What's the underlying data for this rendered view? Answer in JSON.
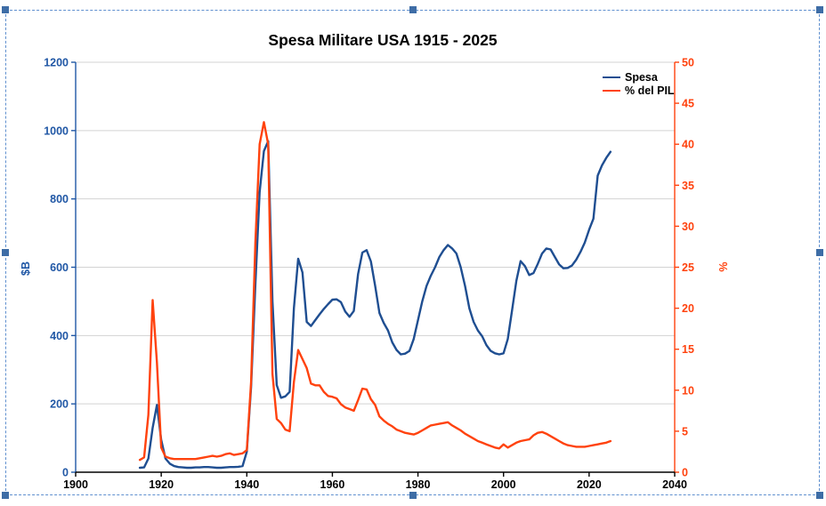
{
  "selection": {
    "border_color": "#6090cf",
    "handle_color": "#3e6da6"
  },
  "chart_data": {
    "type": "line",
    "title": "Spesa Militare USA 1915 - 2025",
    "grid": "horizontal",
    "grid_color": "#d3d3d3",
    "legend_position": "top-right",
    "years": [
      1915,
      1916,
      1917,
      1918,
      1919,
      1920,
      1921,
      1922,
      1923,
      1924,
      1925,
      1926,
      1927,
      1928,
      1929,
      1930,
      1931,
      1932,
      1933,
      1934,
      1935,
      1936,
      1937,
      1938,
      1939,
      1940,
      1941,
      1942,
      1943,
      1944,
      1945,
      1946,
      1947,
      1948,
      1949,
      1950,
      1951,
      1952,
      1953,
      1954,
      1955,
      1956,
      1957,
      1958,
      1959,
      1960,
      1961,
      1962,
      1963,
      1964,
      1965,
      1966,
      1967,
      1968,
      1969,
      1970,
      1971,
      1972,
      1973,
      1974,
      1975,
      1976,
      1977,
      1978,
      1979,
      1980,
      1981,
      1982,
      1983,
      1984,
      1985,
      1986,
      1987,
      1988,
      1989,
      1990,
      1991,
      1992,
      1993,
      1994,
      1995,
      1996,
      1997,
      1998,
      1999,
      2000,
      2001,
      2002,
      2003,
      2004,
      2005,
      2006,
      2007,
      2008,
      2009,
      2010,
      2011,
      2012,
      2013,
      2014,
      2015,
      2016,
      2017,
      2018,
      2019,
      2020,
      2021,
      2022,
      2023,
      2024,
      2025
    ],
    "series": [
      {
        "name": "Spesa",
        "axis": "left",
        "color": "#1f4e91",
        "values": [
          13,
          14,
          40,
          130,
          197,
          95,
          40,
          25,
          18,
          15,
          14,
          13,
          13,
          14,
          14,
          15,
          15,
          14,
          13,
          13,
          14,
          15,
          15,
          16,
          18,
          60,
          250,
          550,
          820,
          940,
          969,
          500,
          255,
          218,
          222,
          235,
          480,
          625,
          585,
          440,
          428,
          445,
          462,
          478,
          492,
          505,
          506,
          498,
          470,
          455,
          472,
          580,
          643,
          650,
          617,
          545,
          466,
          437,
          415,
          380,
          358,
          345,
          347,
          355,
          390,
          445,
          500,
          545,
          575,
          600,
          630,
          650,
          665,
          655,
          640,
          600,
          545,
          480,
          440,
          415,
          398,
          372,
          355,
          348,
          345,
          348,
          390,
          474,
          560,
          618,
          603,
          577,
          583,
          610,
          640,
          655,
          652,
          630,
          608,
          597,
          598,
          605,
          622,
          645,
          672,
          710,
          742,
          868,
          898,
          920,
          938
        ]
      },
      {
        "name": "% del PIL",
        "axis": "right",
        "color": "#ff420e",
        "values": [
          1.5,
          1.8,
          7,
          21,
          13.4,
          3,
          1.9,
          1.7,
          1.6,
          1.6,
          1.6,
          1.6,
          1.6,
          1.6,
          1.7,
          1.8,
          1.9,
          2,
          1.9,
          2,
          2.2,
          2.3,
          2.1,
          2.2,
          2.3,
          2.7,
          11,
          28,
          40,
          42.7,
          40,
          12,
          6.5,
          6,
          5.2,
          5,
          11,
          14.9,
          13.8,
          12.7,
          10.8,
          10.6,
          10.6,
          9.8,
          9.3,
          9.2,
          9,
          8.3,
          7.9,
          7.7,
          7.5,
          8.8,
          10.2,
          10.1,
          8.9,
          8.2,
          6.8,
          6.3,
          5.9,
          5.6,
          5.2,
          5,
          4.8,
          4.7,
          4.6,
          4.8,
          5.1,
          5.4,
          5.7,
          5.8,
          5.9,
          6,
          6.1,
          5.7,
          5.4,
          5.1,
          4.7,
          4.4,
          4.1,
          3.8,
          3.6,
          3.4,
          3.2,
          3,
          2.9,
          3.4,
          3,
          3.3,
          3.6,
          3.8,
          3.9,
          4,
          4.5,
          4.8,
          4.9,
          4.7,
          4.4,
          4.1,
          3.8,
          3.5,
          3.3,
          3.2,
          3.1,
          3.1,
          3.1,
          3.2,
          3.3,
          3.4,
          3.5,
          3.6,
          3.8
        ]
      }
    ],
    "x_axis": {
      "label": "",
      "range": [
        1900,
        2040
      ],
      "ticks": [
        1900,
        1920,
        1940,
        1960,
        1980,
        2000,
        2020,
        2040
      ],
      "color": "#000000"
    },
    "y_left": {
      "label": "$B",
      "range": [
        0,
        1200
      ],
      "ticks": [
        0,
        200,
        400,
        600,
        800,
        1000,
        1200
      ],
      "color": "#2057a5"
    },
    "y_right": {
      "label": "%",
      "range": [
        0,
        50
      ],
      "ticks": [
        0,
        5,
        10,
        15,
        20,
        25,
        30,
        35,
        40,
        45,
        50
      ],
      "color": "#ff420e"
    }
  }
}
